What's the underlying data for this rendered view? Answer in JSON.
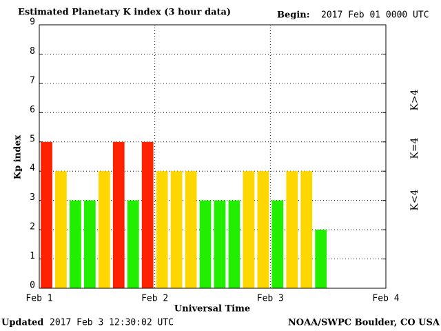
{
  "chart_data": {
    "type": "bar",
    "title": "Estimated Planetary K index (3 hour data)",
    "begin_label": "Begin:",
    "begin": "2017 Feb 01 0000 UTC",
    "y_label": "Kp index",
    "x_label": "Universal Time",
    "updated_label": "Updated",
    "updated": "2017 Feb  3 12:30:02 UTC",
    "source": "NOAA/SWPC Boulder, CO USA",
    "categories": [
      null,
      null,
      null,
      null,
      null,
      null,
      null,
      null,
      null,
      null,
      null,
      null,
      null,
      null,
      null,
      null,
      null,
      null,
      null,
      null
    ],
    "values": [
      5,
      4,
      3,
      3,
      4,
      5,
      3,
      5,
      4,
      4,
      4,
      3,
      3,
      3,
      4,
      4,
      3,
      4,
      4,
      2
    ],
    "colors": [
      "#ff2200",
      "#ffd700",
      "#22ee00",
      "#22ee00",
      "#ffd700",
      "#ff2200",
      "#22ee00",
      "#ff2200",
      "#ffd700",
      "#ffd700",
      "#ffd700",
      "#22ee00",
      "#22ee00",
      "#22ee00",
      "#ffd700",
      "#ffd700",
      "#22ee00",
      "#ffd700",
      "#ffd700",
      "#22ee00"
    ],
    "xlim": [
      0,
      24
    ],
    "xticks": [
      {
        "value": 0,
        "label": "Feb 1"
      },
      {
        "value": 8,
        "label": "Feb 2"
      },
      {
        "value": 16,
        "label": "Feb 3"
      },
      {
        "value": 24,
        "label": "Feb 4"
      }
    ],
    "ylim": [
      0,
      9
    ],
    "yticks": [
      0,
      1,
      2,
      3,
      4,
      5,
      6,
      7,
      8,
      9
    ],
    "grid": true,
    "legend": [
      {
        "label": "K>4",
        "color": "#ff2200"
      },
      {
        "label": "K=4",
        "color": "#ffd700"
      },
      {
        "label": "K<4",
        "color": "#22ee00"
      }
    ]
  }
}
